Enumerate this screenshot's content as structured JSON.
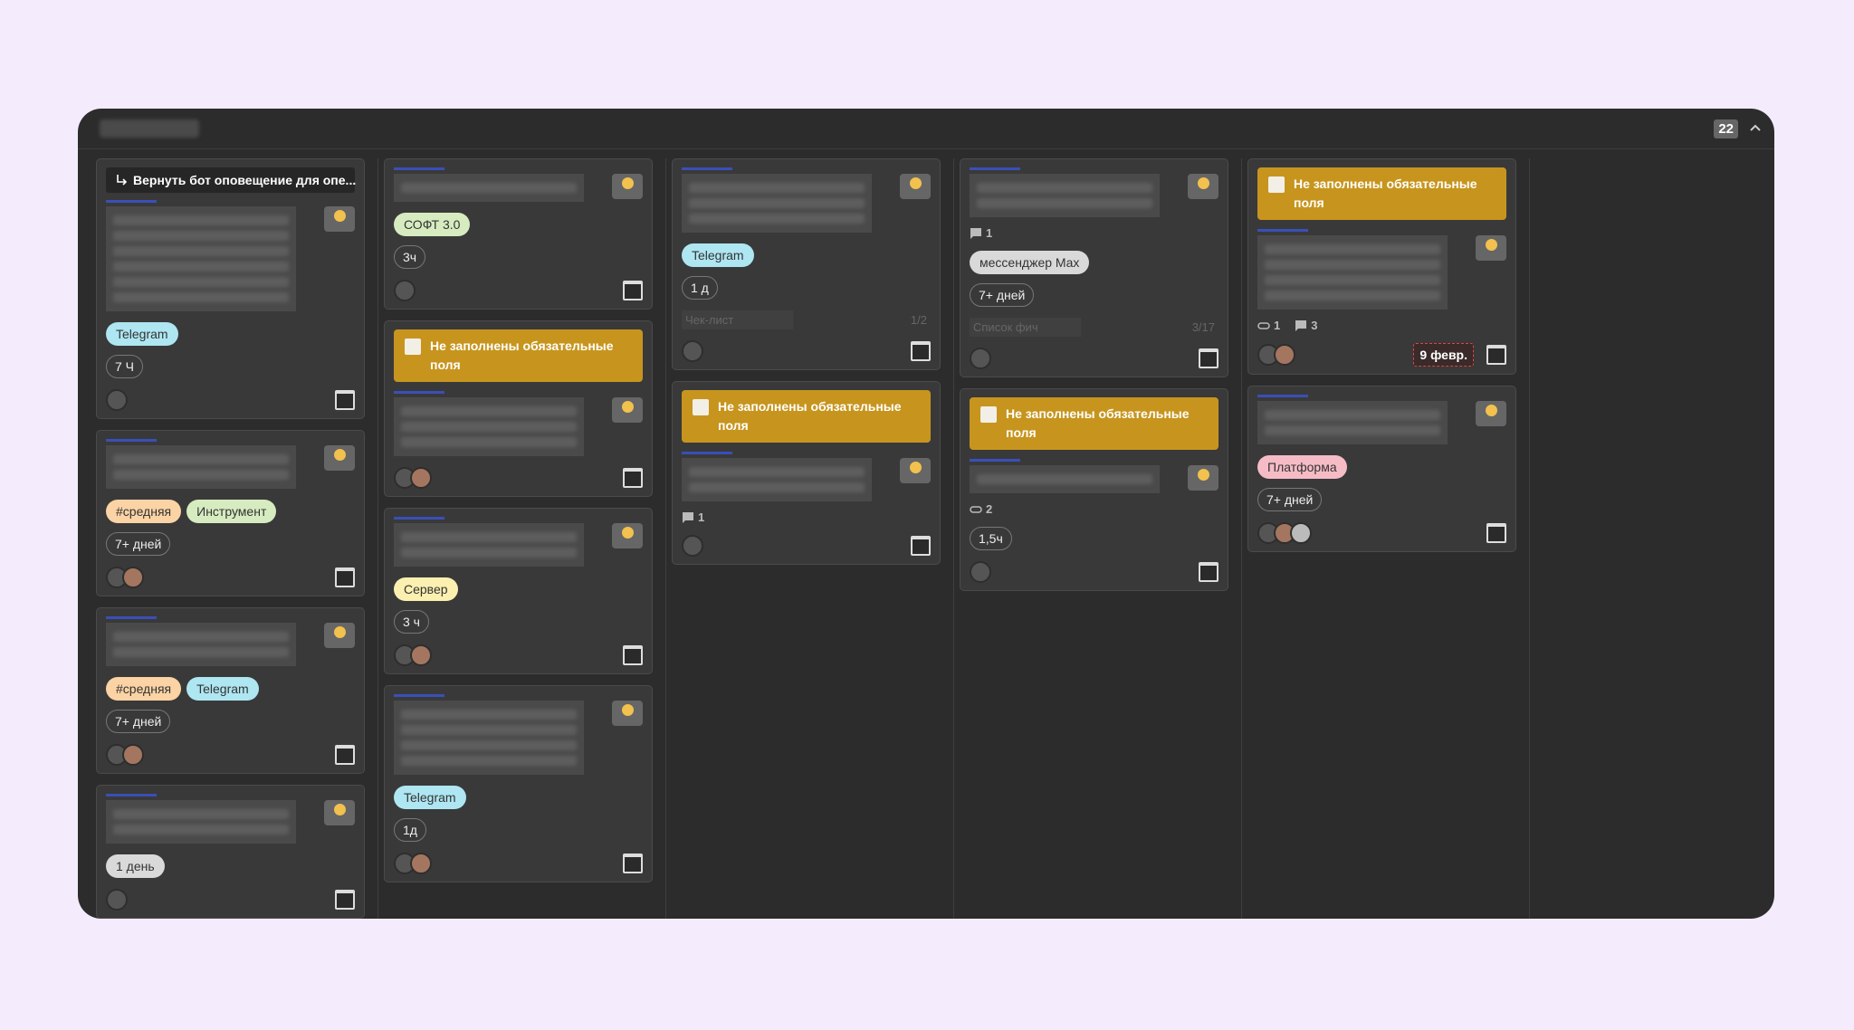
{
  "header": {
    "count": "22"
  },
  "columns": [
    {
      "cards": [
        {
          "parent": "Вернуть бот оповещение для опе...",
          "tags": [
            {
              "text": "Telegram",
              "color": "#aee6f2"
            }
          ],
          "duration": "7 Ч"
        },
        {
          "tags": [
            {
              "text": "#средняя",
              "color": "#fbd3a4"
            },
            {
              "text": "Инструмент",
              "color": "#d6ecc0"
            }
          ],
          "duration": "7+ дней"
        },
        {
          "tags": [
            {
              "text": "#средняя",
              "color": "#fbd3a4"
            },
            {
              "text": "Telegram",
              "color": "#aee6f2"
            }
          ],
          "duration": "7+ дней"
        },
        {
          "tags": [
            {
              "text": "1 день",
              "color": "#d9d9d9"
            }
          ]
        }
      ]
    },
    {
      "cards": [
        {
          "tags": [
            {
              "text": "СОФТ 3.0",
              "color": "#d6ecc0"
            }
          ],
          "duration": "3ч"
        },
        {
          "warning": "Не заполнены обязательные поля"
        },
        {
          "tags": [
            {
              "text": "Сервер",
              "color": "#fbf0b0"
            }
          ],
          "duration": "3 ч"
        },
        {
          "tags": [
            {
              "text": "Telegram",
              "color": "#aee6f2"
            }
          ],
          "duration": "1д"
        }
      ]
    },
    {
      "cards": [
        {
          "tags": [
            {
              "text": "Telegram",
              "color": "#aee6f2"
            }
          ],
          "duration": "1 д",
          "checklist": {
            "label": "Чек-лист",
            "progress": "1/2"
          }
        },
        {
          "warning": "Не заполнены обязательные поля",
          "comments": 1
        }
      ]
    },
    {
      "cards": [
        {
          "comments": 1,
          "tags": [
            {
              "text": "мессенджер Max",
              "color": "#d9d9d9"
            }
          ],
          "duration": "7+ дней",
          "checklist": {
            "label": "Список фич",
            "progress": "3/17"
          }
        },
        {
          "warning": "Не заполнены обязательные поля",
          "attachments": 2,
          "duration": "1,5ч"
        }
      ]
    },
    {
      "cards": [
        {
          "warning": "Не заполнены обязательные поля",
          "attachments": 1,
          "comments": 3,
          "due": "9 февр."
        },
        {
          "tags": [
            {
              "text": "Платформа",
              "color": "#f6bcc6"
            }
          ],
          "duration": "7+ дней"
        }
      ]
    }
  ]
}
